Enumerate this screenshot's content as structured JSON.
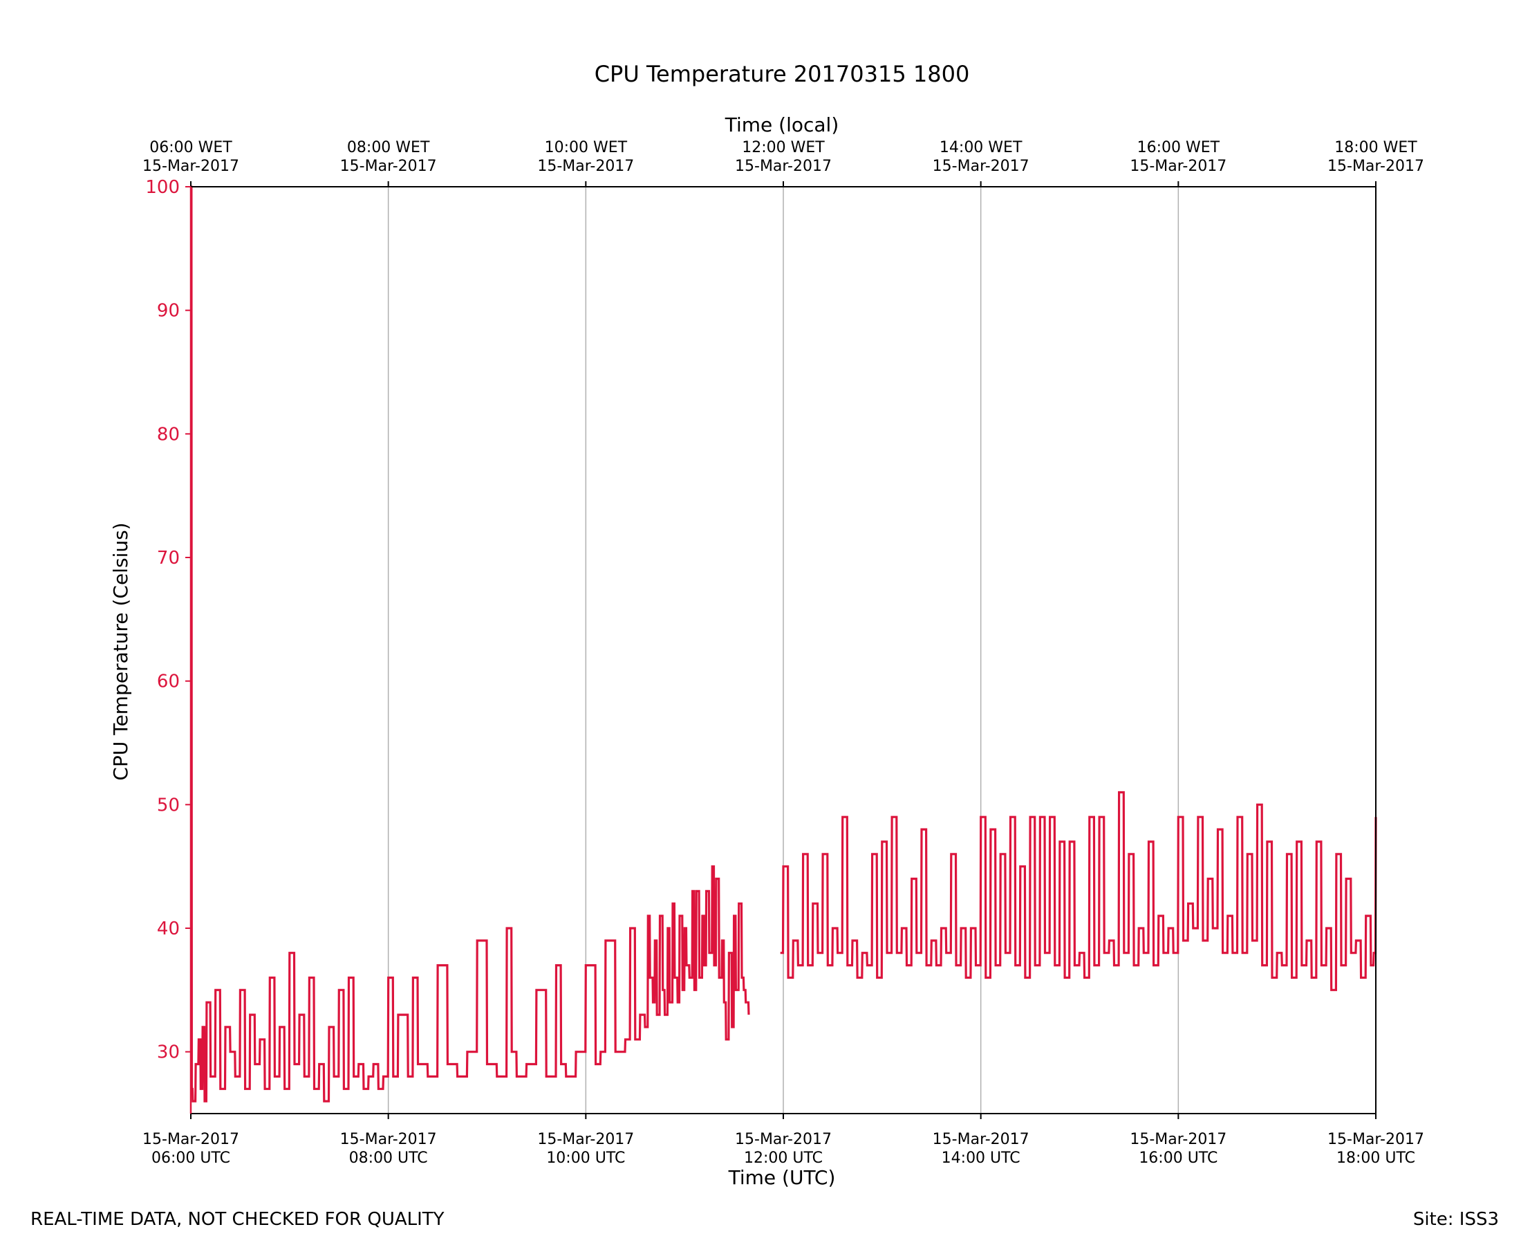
{
  "colors": {
    "series": "#dc143c",
    "grid": "#b0b0b0",
    "axis": "#000000"
  },
  "footer": {
    "left": "REAL-TIME DATA, NOT CHECKED FOR QUALITY",
    "right": "Site: ISS3"
  },
  "chart_data": {
    "type": "line",
    "title": "CPU Temperature 20170315 1800",
    "xlabel": "Time (UTC)",
    "x2label": "Time (local)",
    "ylabel": "CPU Temperature (Celsius)",
    "xlim": [
      6,
      18
    ],
    "ylim": [
      25,
      100
    ],
    "yticks": [
      30,
      40,
      50,
      60,
      70,
      80,
      90,
      100
    ],
    "grid": "vertical",
    "xticks": [
      {
        "x": 6,
        "bottom": [
          "15-Mar-2017",
          "06:00 UTC"
        ],
        "top": [
          "06:00 WET",
          "15-Mar-2017"
        ]
      },
      {
        "x": 8,
        "bottom": [
          "15-Mar-2017",
          "08:00 UTC"
        ],
        "top": [
          "08:00 WET",
          "15-Mar-2017"
        ]
      },
      {
        "x": 10,
        "bottom": [
          "15-Mar-2017",
          "10:00 UTC"
        ],
        "top": [
          "10:00 WET",
          "15-Mar-2017"
        ]
      },
      {
        "x": 12,
        "bottom": [
          "15-Mar-2017",
          "12:00 UTC"
        ],
        "top": [
          "12:00 WET",
          "15-Mar-2017"
        ]
      },
      {
        "x": 14,
        "bottom": [
          "15-Mar-2017",
          "14:00 UTC"
        ],
        "top": [
          "14:00 WET",
          "15-Mar-2017"
        ]
      },
      {
        "x": 16,
        "bottom": [
          "15-Mar-2017",
          "16:00 UTC"
        ],
        "top": [
          "16:00 WET",
          "15-Mar-2017"
        ]
      },
      {
        "x": 18,
        "bottom": [
          "15-Mar-2017",
          "18:00 UTC"
        ],
        "top": [
          "18:00 WET",
          "15-Mar-2017"
        ]
      }
    ],
    "series": [
      {
        "name": "CPU Temperature",
        "segments": [
          {
            "x": [
              6.0,
              6.01,
              6.02,
              6.05,
              6.08,
              6.1,
              6.12,
              6.14,
              6.16,
              6.2,
              6.25,
              6.3,
              6.35,
              6.4,
              6.45,
              6.5,
              6.55,
              6.6,
              6.65,
              6.7,
              6.75,
              6.8,
              6.85,
              6.9,
              6.95,
              7.0,
              7.05,
              7.1,
              7.15,
              7.2,
              7.25,
              7.3,
              7.35,
              7.4,
              7.45,
              7.5,
              7.55,
              7.6,
              7.65,
              7.7,
              7.75,
              7.8,
              7.85,
              7.9,
              7.95,
              8.0,
              8.05,
              8.1,
              8.2,
              8.25,
              8.3,
              8.4,
              8.5,
              8.6,
              8.7,
              8.8,
              8.9,
              9.0,
              9.1,
              9.2,
              9.25,
              9.3,
              9.4,
              9.5,
              9.6,
              9.7,
              9.75,
              9.8,
              9.9,
              10.0,
              10.1,
              10.15,
              10.2,
              10.3,
              10.4,
              10.45,
              10.5,
              10.55,
              10.6,
              10.63,
              10.65,
              10.68,
              10.7,
              10.72,
              10.75,
              10.78,
              10.8,
              10.83,
              10.85,
              10.88,
              10.9,
              10.93,
              10.95,
              10.98,
              11.0,
              11.02,
              11.05,
              11.08,
              11.1,
              11.12,
              11.15,
              11.18,
              11.2,
              11.22,
              11.25,
              11.28,
              11.3,
              11.32,
              11.35,
              11.38,
              11.4,
              11.42,
              11.45,
              11.48,
              11.5,
              11.52,
              11.55,
              11.58,
              11.6,
              11.62,
              11.65
            ],
            "y": [
              100,
              27,
              26,
              29,
              31,
              27,
              32,
              26,
              34,
              28,
              35,
              27,
              32,
              30,
              28,
              35,
              27,
              33,
              29,
              31,
              27,
              36,
              28,
              32,
              27,
              38,
              29,
              33,
              28,
              36,
              27,
              29,
              26,
              32,
              28,
              35,
              27,
              36,
              28,
              29,
              27,
              28,
              29,
              27,
              28,
              36,
              28,
              33,
              28,
              36,
              29,
              28,
              37,
              29,
              28,
              30,
              39,
              29,
              28,
              40,
              30,
              28,
              29,
              35,
              28,
              37,
              29,
              28,
              30,
              37,
              29,
              30,
              39,
              30,
              31,
              40,
              31,
              33,
              32,
              41,
              36,
              34,
              39,
              33,
              41,
              35,
              33,
              40,
              34,
              42,
              36,
              34,
              41,
              35,
              40,
              37,
              36,
              43,
              35,
              43,
              36,
              41,
              37,
              43,
              38,
              45,
              37,
              44,
              36,
              39,
              34,
              31,
              38,
              32,
              41,
              35,
              42,
              36,
              35,
              34,
              33
            ]
          },
          {
            "x": [
              11.97,
              12.0,
              12.05,
              12.1,
              12.15,
              12.2,
              12.25,
              12.3,
              12.35,
              12.4,
              12.45,
              12.5,
              12.55,
              12.6,
              12.65,
              12.7,
              12.75,
              12.8,
              12.85,
              12.9,
              12.95,
              13.0,
              13.05,
              13.1,
              13.15,
              13.2,
              13.25,
              13.3,
              13.35,
              13.4,
              13.45,
              13.5,
              13.55,
              13.6,
              13.65,
              13.7,
              13.75,
              13.8,
              13.85,
              13.9,
              13.95,
              14.0,
              14.05,
              14.1,
              14.15,
              14.2,
              14.25,
              14.3,
              14.35,
              14.4,
              14.45,
              14.5,
              14.55,
              14.6,
              14.65,
              14.7,
              14.75,
              14.8,
              14.85,
              14.9,
              14.95,
              15.0,
              15.05,
              15.1,
              15.15,
              15.2,
              15.25,
              15.3,
              15.35,
              15.4,
              15.45,
              15.5,
              15.55,
              15.6,
              15.65,
              15.7,
              15.75,
              15.8,
              15.85,
              15.9,
              15.95,
              16.0,
              16.05,
              16.1,
              16.15,
              16.2,
              16.25,
              16.3,
              16.35,
              16.4,
              16.45,
              16.5,
              16.55,
              16.6,
              16.65,
              16.7,
              16.75,
              16.8,
              16.85,
              16.9,
              16.95,
              17.0,
              17.05,
              17.1,
              17.15,
              17.2,
              17.25,
              17.3,
              17.35,
              17.4,
              17.45,
              17.5,
              17.55,
              17.6,
              17.65,
              17.7,
              17.75,
              17.8,
              17.85,
              17.9,
              17.95,
              17.98,
              18.0
            ],
            "y": [
              38,
              45,
              36,
              39,
              37,
              46,
              37,
              42,
              38,
              46,
              37,
              40,
              38,
              49,
              37,
              39,
              36,
              38,
              37,
              46,
              36,
              47,
              38,
              49,
              38,
              40,
              37,
              44,
              38,
              48,
              37,
              39,
              37,
              40,
              38,
              46,
              37,
              40,
              36,
              40,
              37,
              49,
              36,
              48,
              37,
              46,
              38,
              49,
              37,
              45,
              36,
              49,
              37,
              49,
              38,
              49,
              37,
              47,
              36,
              47,
              37,
              38,
              36,
              49,
              37,
              49,
              38,
              39,
              37,
              51,
              38,
              46,
              37,
              40,
              38,
              47,
              37,
              41,
              38,
              40,
              38,
              49,
              39,
              42,
              40,
              49,
              39,
              44,
              40,
              48,
              38,
              41,
              38,
              49,
              38,
              46,
              39,
              50,
              37,
              47,
              36,
              38,
              37,
              46,
              36,
              47,
              37,
              39,
              36,
              47,
              37,
              40,
              35,
              46,
              37,
              44,
              38,
              39,
              36,
              41,
              37,
              38,
              49
            ]
          }
        ]
      }
    ]
  }
}
